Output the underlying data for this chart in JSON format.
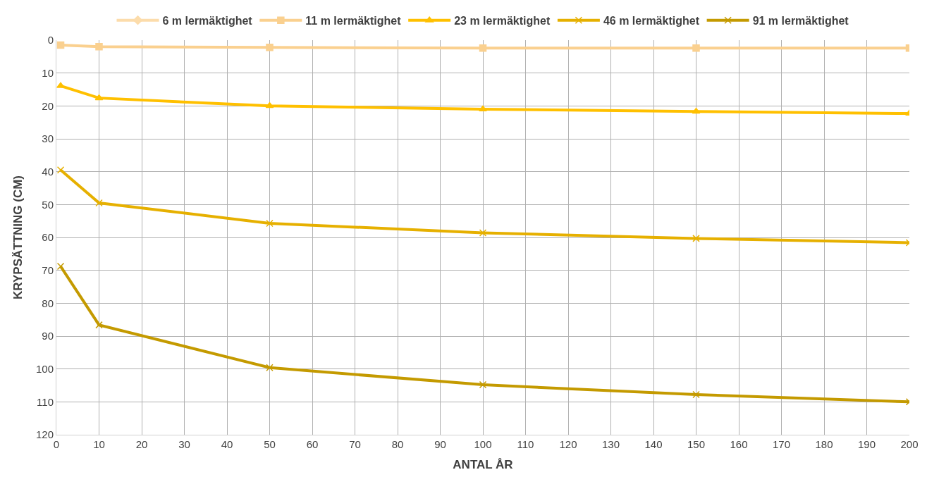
{
  "chart_data": {
    "type": "line",
    "xlabel": "ANTAL ÅR",
    "ylabel": "KRYPSÄTTNING (CM)",
    "x": [
      1,
      10,
      50,
      100,
      150,
      200
    ],
    "series": [
      {
        "name": "6 m lermäktighet",
        "color": "#fcdcab",
        "marker": "diamond",
        "values": [
          null,
          null,
          null,
          null,
          null,
          null
        ]
      },
      {
        "name": "11 m lermäktighet",
        "color": "#fad08f",
        "marker": "square",
        "values": [
          1.5,
          2.0,
          2.2,
          2.4,
          2.4,
          2.4
        ]
      },
      {
        "name": "23 m lermäktighet",
        "color": "#ffc000",
        "marker": "triangle",
        "values": [
          13.9,
          17.6,
          20.0,
          21.0,
          21.7,
          22.3
        ]
      },
      {
        "name": "46 m lermäktighet",
        "color": "#e6b000",
        "marker": "cross",
        "values": [
          39.5,
          49.5,
          55.7,
          58.6,
          60.3,
          61.6
        ]
      },
      {
        "name": "91 m lermäktighet",
        "color": "#c49a00",
        "marker": "cross",
        "values": [
          68.8,
          86.6,
          99.6,
          104.8,
          107.8,
          110.0
        ]
      }
    ],
    "xlim": [
      0,
      200
    ],
    "xticks": [
      0,
      10,
      20,
      30,
      40,
      50,
      60,
      70,
      80,
      90,
      100,
      110,
      120,
      130,
      140,
      150,
      160,
      170,
      180,
      190,
      200
    ],
    "ylim": [
      120,
      0
    ],
    "yticks": [
      0,
      10,
      20,
      30,
      40,
      50,
      60,
      70,
      80,
      90,
      100,
      110,
      120
    ],
    "grid": true,
    "legend": "top",
    "line_style": "solid"
  }
}
